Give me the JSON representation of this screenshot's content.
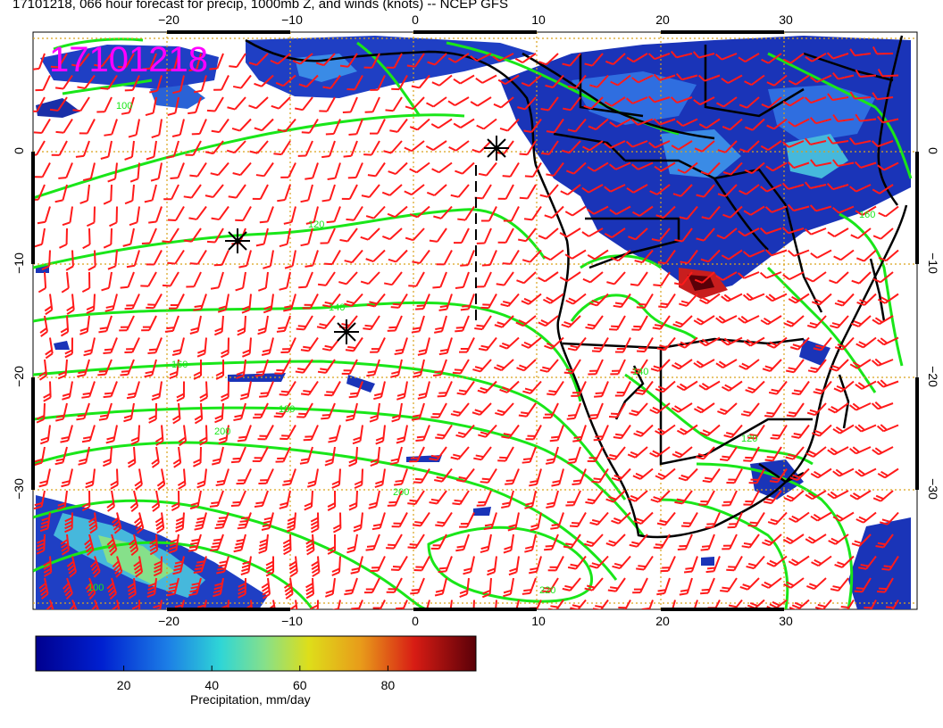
{
  "title": "17101218, 066 hour forecast for precip, 1000mb Z, and winds (knots) -- NCEP GFS",
  "stamp": "17101218",
  "colors": {
    "contour": "#19e619",
    "barb": "#ff1a1a",
    "grid": "#d9a21a",
    "stamp": "#ff00ff",
    "coast": "#000000"
  },
  "map": {
    "lon_range": [
      -30,
      41
    ],
    "lat_range": [
      -40,
      10
    ],
    "x_ticks": [
      {
        "label": "−20"
      },
      {
        "label": "−10"
      },
      {
        "label": "0"
      },
      {
        "label": "10"
      },
      {
        "label": "20"
      },
      {
        "label": "30"
      }
    ],
    "y_ticks": [
      {
        "label": "0"
      },
      {
        "label": "−10"
      },
      {
        "label": "−20"
      },
      {
        "label": "−30"
      }
    ],
    "contour_labels": [
      "100",
      "120",
      "140",
      "160",
      "180",
      "200",
      "220",
      "100",
      "120",
      "140",
      "160",
      "200"
    ]
  },
  "colorbar": {
    "label": "Precipitation, mm/day",
    "ticks": [
      "20",
      "40",
      "60",
      "80"
    ],
    "range": [
      0,
      100
    ]
  }
}
